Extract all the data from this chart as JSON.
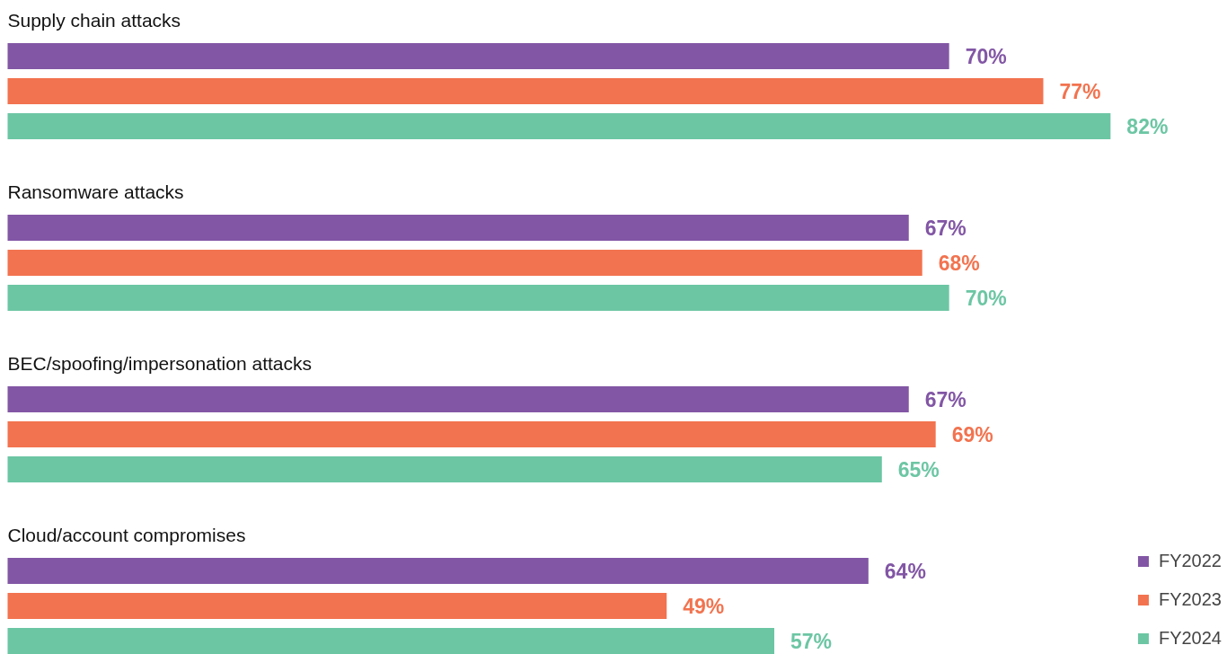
{
  "chart_data": {
    "type": "bar",
    "orientation": "horizontal",
    "categories": [
      "Supply chain attacks",
      "Ransomware attacks",
      "BEC/spoofing/impersonation attacks",
      "Cloud/account compromises"
    ],
    "series": [
      {
        "name": "FY2022",
        "color": "#8256a5",
        "values": [
          70,
          67,
          67,
          64
        ],
        "value_labels": [
          "70%",
          "67%",
          "67%",
          "64%"
        ]
      },
      {
        "name": "FY2023",
        "color": "#f2734f",
        "values": [
          77,
          68,
          69,
          49
        ],
        "value_labels": [
          "77%",
          "68%",
          "69%",
          "49%"
        ]
      },
      {
        "name": "FY2024",
        "color": "#6cc6a4",
        "values": [
          82,
          70,
          65,
          57
        ],
        "value_labels": [
          "82%",
          "70%",
          "65%",
          "57%"
        ]
      }
    ],
    "legend": "bottom right",
    "grid": false
  }
}
